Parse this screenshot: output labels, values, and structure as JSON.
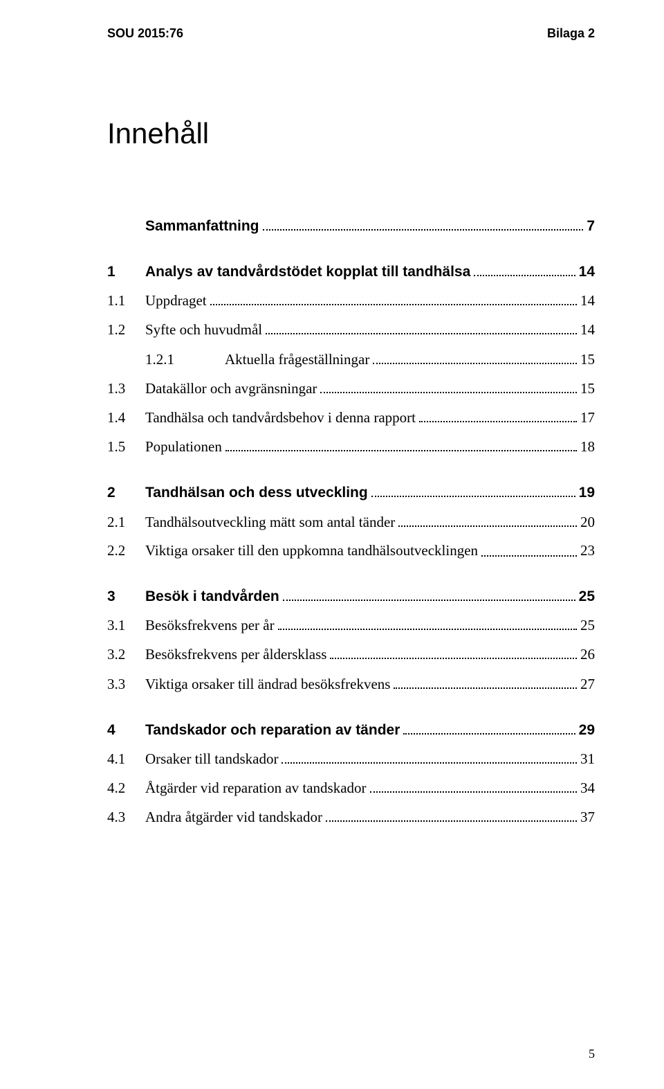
{
  "header": {
    "left": "SOU 2015:76",
    "right": "Bilaga 2"
  },
  "title": "Innehåll",
  "toc": [
    {
      "type": "row",
      "bold": true,
      "num": "",
      "text": "Sammanfattning",
      "page": "7"
    },
    {
      "type": "gap"
    },
    {
      "type": "row",
      "bold": true,
      "num": "1",
      "text": "Analys av tandvårdstödet kopplat till tandhälsa",
      "page": "14"
    },
    {
      "type": "row",
      "bold": false,
      "num": "1.1",
      "text": "Uppdraget",
      "page": "14"
    },
    {
      "type": "row",
      "bold": false,
      "num": "1.2",
      "text": "Syfte och huvudmål",
      "page": "14"
    },
    {
      "type": "row",
      "bold": false,
      "num": "1.2.1",
      "text": "Aktuella frågeställningar",
      "page": "15",
      "indent": true
    },
    {
      "type": "row",
      "bold": false,
      "num": "1.3",
      "text": "Datakällor och avgränsningar",
      "page": "15"
    },
    {
      "type": "row",
      "bold": false,
      "num": "1.4",
      "text": "Tandhälsa och tandvårdsbehov i denna rapport",
      "page": "17"
    },
    {
      "type": "row",
      "bold": false,
      "num": "1.5",
      "text": "Populationen",
      "page": "18"
    },
    {
      "type": "gap"
    },
    {
      "type": "row",
      "bold": true,
      "num": "2",
      "text": "Tandhälsan och dess utveckling",
      "page": "19"
    },
    {
      "type": "row",
      "bold": false,
      "num": "2.1",
      "text": "Tandhälsoutveckling mätt som antal tänder",
      "page": "20"
    },
    {
      "type": "row",
      "bold": false,
      "num": "2.2",
      "text": "Viktiga orsaker till den uppkomna tandhälsoutvecklingen",
      "page": "23",
      "multi": true
    },
    {
      "type": "gap"
    },
    {
      "type": "row",
      "bold": true,
      "num": "3",
      "text": "Besök i tandvården",
      "page": "25"
    },
    {
      "type": "row",
      "bold": false,
      "num": "3.1",
      "text": "Besöksfrekvens per år",
      "page": "25"
    },
    {
      "type": "row",
      "bold": false,
      "num": "3.2",
      "text": "Besöksfrekvens per åldersklass",
      "page": "26"
    },
    {
      "type": "row",
      "bold": false,
      "num": "3.3",
      "text": "Viktiga orsaker till ändrad besöksfrekvens",
      "page": "27"
    },
    {
      "type": "gap"
    },
    {
      "type": "row",
      "bold": true,
      "num": "4",
      "text": "Tandskador och reparation av tänder",
      "page": "29"
    },
    {
      "type": "row",
      "bold": false,
      "num": "4.1",
      "text": "Orsaker till tandskador",
      "page": "31"
    },
    {
      "type": "row",
      "bold": false,
      "num": "4.2",
      "text": "Åtgärder vid reparation av tandskador",
      "page": "34"
    },
    {
      "type": "row",
      "bold": false,
      "num": "4.3",
      "text": "Andra åtgärder vid tandskador",
      "page": "37"
    }
  ],
  "pageNumber": "5"
}
